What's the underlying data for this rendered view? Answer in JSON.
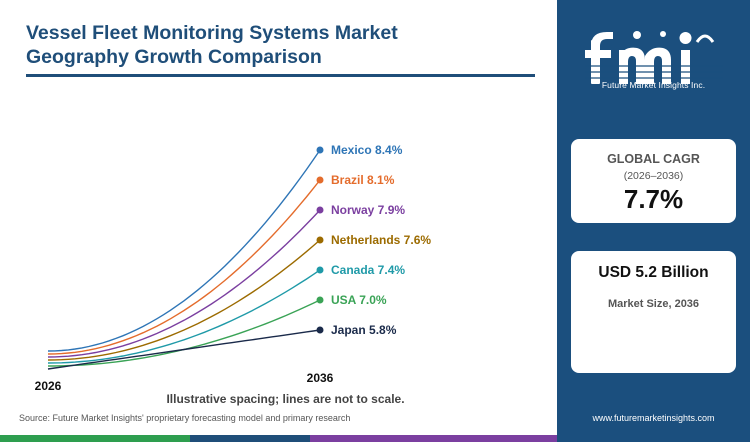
{
  "header": {
    "title_line1": "Vessel Fleet Monitoring Systems Market",
    "title_line2": "Geography Growth Comparison"
  },
  "chart_data": {
    "type": "line",
    "x": [
      "2026",
      "2036"
    ],
    "series": [
      {
        "name": "Mexico",
        "cagr": 8.4,
        "label": "Mexico 8.4%",
        "color": "#2e75b6"
      },
      {
        "name": "Brazil",
        "cagr": 8.1,
        "label": "Brazil 8.1%",
        "color": "#e46c2c"
      },
      {
        "name": "Norway",
        "cagr": 7.9,
        "label": "Norway 7.9%",
        "color": "#7b3fa0"
      },
      {
        "name": "Netherlands",
        "cagr": 7.6,
        "label": "Netherlands 7.6%",
        "color": "#9c6b00"
      },
      {
        "name": "Canada",
        "cagr": 7.4,
        "label": "Canada 7.4%",
        "color": "#1f9aa8"
      },
      {
        "name": "USA",
        "cagr": 7.0,
        "label": "USA 7.0%",
        "color": "#3aa356"
      },
      {
        "name": "Japan",
        "cagr": 5.8,
        "label": "Japan 5.8%",
        "color": "#1a2a4a"
      }
    ],
    "xlabel": "",
    "ylabel": ""
  },
  "note": "Illustrative spacing; lines are not to scale.",
  "source": "Source: Future Market Insights' proprietary forecasting model and primary research",
  "brand": {
    "logo_text": "fmi",
    "tagline": "Future Market Insights Inc.",
    "website": "www.futuremarketinsights.com",
    "panel_color": "#1b4f7e"
  },
  "cagr_card": {
    "label": "GLOBAL CAGR",
    "period": "(2026–2036)",
    "value": "7.7%"
  },
  "size_card": {
    "value": "USD 5.2 Billion",
    "label": "Market Size, 2036"
  },
  "bottom_bar_colors": [
    "#2e9e4f",
    "#1f4e79",
    "#7b3fa0",
    "#1b4f7e"
  ]
}
